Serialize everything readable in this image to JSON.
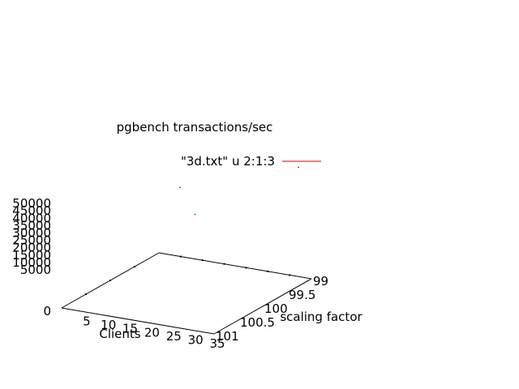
{
  "chart_data": {
    "type": "scatter",
    "title": "pgbench transactions/sec",
    "xlabel": "Clients",
    "ylabel": "scaling factor",
    "zlabel": "",
    "xlim": [
      0,
      35
    ],
    "ylim": [
      99,
      101
    ],
    "zlim": [
      0,
      50000
    ],
    "x_ticks": [
      "5",
      "10",
      "15",
      "20",
      "25",
      "30",
      "35"
    ],
    "y_ticks": [
      "99",
      "99.5",
      "100",
      "100.5",
      "101"
    ],
    "z_ticks": [
      "0",
      "5000",
      "10000",
      "15000",
      "20000",
      "25000",
      "30000",
      "35000",
      "40000",
      "45000",
      "50000"
    ],
    "grid": false,
    "legend_position": "top-center",
    "series": [
      {
        "name": "\"3d.txt\" u 2:1:3",
        "color": "#cc0000",
        "points": [
          {
            "x": 32,
            "y": 99,
            "z": 50000
          },
          {
            "x": 16,
            "y": 100,
            "z": 48000
          },
          {
            "x": 25,
            "y": 100.5,
            "z": 45000
          }
        ]
      }
    ],
    "axis_color": "#000000"
  }
}
